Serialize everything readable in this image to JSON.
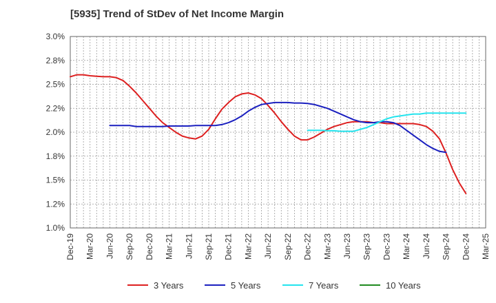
{
  "chart_data": {
    "type": "line",
    "title": "[5935]  Trend of StDev of Net Income Margin",
    "xlabel": "",
    "ylabel": "",
    "x_ticks": [
      "Dec-19",
      "Mar-20",
      "Jun-20",
      "Sep-20",
      "Dec-20",
      "Mar-21",
      "Jun-21",
      "Sep-21",
      "Dec-21",
      "Mar-22",
      "Jun-22",
      "Sep-22",
      "Dec-22",
      "Mar-23",
      "Jun-23",
      "Sep-23",
      "Dec-23",
      "Mar-24",
      "Jun-24",
      "Sep-24",
      "Dec-24",
      "Mar-25"
    ],
    "y_ticks": [
      "1.0%",
      "1.2%",
      "1.5%",
      "1.8%",
      "2.0%",
      "2.2%",
      "2.5%",
      "2.8%",
      "3.0%"
    ],
    "ylim": [
      1.0,
      3.0
    ],
    "grid": true,
    "legend_position": "bottom",
    "series": [
      {
        "name": "3 Years",
        "color": "#dd1f1f",
        "x": [
          "Dec-19",
          "Jan-20",
          "Feb-20",
          "Mar-20",
          "Apr-20",
          "May-20",
          "Jun-20",
          "Jul-20",
          "Aug-20",
          "Sep-20",
          "Oct-20",
          "Nov-20",
          "Dec-20",
          "Jan-21",
          "Feb-21",
          "Mar-21",
          "Apr-21",
          "May-21",
          "Jun-21",
          "Jul-21",
          "Aug-21",
          "Sep-21",
          "Oct-21",
          "Nov-21",
          "Dec-21",
          "Jan-22",
          "Feb-22",
          "Mar-22",
          "Apr-22",
          "May-22",
          "Jun-22",
          "Jul-22",
          "Aug-22",
          "Sep-22",
          "Oct-22",
          "Nov-22",
          "Dec-22",
          "Jan-23",
          "Feb-23",
          "Mar-23",
          "Apr-23",
          "May-23",
          "Jun-23",
          "Jul-23",
          "Aug-23",
          "Sep-23",
          "Oct-23",
          "Nov-23",
          "Dec-23",
          "Jan-24",
          "Feb-24",
          "Mar-24",
          "Apr-24",
          "May-24",
          "Jun-24",
          "Jul-24",
          "Aug-24",
          "Sep-24",
          "Oct-24",
          "Nov-24",
          "Dec-24"
        ],
        "values": [
          2.58,
          2.6,
          2.6,
          2.59,
          2.585,
          2.58,
          2.58,
          2.57,
          2.54,
          2.48,
          2.41,
          2.33,
          2.25,
          2.17,
          2.1,
          2.05,
          2.0,
          1.96,
          1.94,
          1.93,
          1.96,
          2.03,
          2.14,
          2.24,
          2.31,
          2.37,
          2.4,
          2.41,
          2.39,
          2.35,
          2.28,
          2.2,
          2.11,
          2.03,
          1.96,
          1.92,
          1.92,
          1.95,
          1.99,
          2.03,
          2.06,
          2.08,
          2.1,
          2.11,
          2.11,
          2.11,
          2.1,
          2.1,
          2.09,
          2.09,
          2.09,
          2.09,
          2.09,
          2.08,
          2.06,
          2.01,
          1.93,
          1.78,
          1.61,
          1.47,
          1.36
        ]
      },
      {
        "name": "5 Years",
        "color": "#1a1fbf",
        "x": [
          "Dec-19",
          "Jan-20",
          "Feb-20",
          "Mar-20",
          "Apr-20",
          "May-20",
          "Jun-20",
          "Jul-20",
          "Aug-20",
          "Sep-20",
          "Oct-20",
          "Nov-20",
          "Dec-20",
          "Jan-21",
          "Feb-21",
          "Mar-21",
          "Apr-21",
          "May-21",
          "Jun-21",
          "Jul-21",
          "Aug-21",
          "Sep-21",
          "Oct-21",
          "Nov-21",
          "Dec-21",
          "Jan-22",
          "Feb-22",
          "Mar-22",
          "Apr-22",
          "May-22",
          "Jun-22",
          "Jul-22",
          "Aug-22",
          "Sep-22",
          "Oct-22",
          "Nov-22",
          "Dec-22",
          "Jan-23",
          "Feb-23",
          "Mar-23",
          "Apr-23",
          "May-23",
          "Jun-23",
          "Jul-23",
          "Aug-23",
          "Sep-23",
          "Oct-23",
          "Nov-23",
          "Dec-23",
          "Jan-24",
          "Feb-24",
          "Mar-24",
          "Apr-24",
          "May-24",
          "Jun-24",
          "Jul-24",
          "Aug-24",
          "Sep-24",
          "Oct-24",
          "Nov-24",
          "Dec-24"
        ],
        "values": [
          null,
          null,
          null,
          null,
          null,
          null,
          2.07,
          2.07,
          2.07,
          2.07,
          2.06,
          2.06,
          2.06,
          2.06,
          2.06,
          2.065,
          2.065,
          2.065,
          2.065,
          2.07,
          2.07,
          2.07,
          2.07,
          2.08,
          2.1,
          2.13,
          2.17,
          2.22,
          2.26,
          2.29,
          2.3,
          2.31,
          2.31,
          2.31,
          2.305,
          2.305,
          2.3,
          2.29,
          2.27,
          2.25,
          2.22,
          2.19,
          2.16,
          2.13,
          2.11,
          2.1,
          2.1,
          2.11,
          2.11,
          2.1,
          2.07,
          2.02,
          1.97,
          1.92,
          1.87,
          1.83,
          1.8,
          1.79,
          null,
          null,
          null
        ]
      },
      {
        "name": "7 Years",
        "color": "#22e4ee",
        "x": [
          "Dec-19",
          "Jan-20",
          "Feb-20",
          "Mar-20",
          "Apr-20",
          "May-20",
          "Jun-20",
          "Jul-20",
          "Aug-20",
          "Sep-20",
          "Oct-20",
          "Nov-20",
          "Dec-20",
          "Jan-21",
          "Feb-21",
          "Mar-21",
          "Apr-21",
          "May-21",
          "Jun-21",
          "Jul-21",
          "Aug-21",
          "Sep-21",
          "Oct-21",
          "Nov-21",
          "Dec-21",
          "Jan-22",
          "Feb-22",
          "Mar-22",
          "Apr-22",
          "May-22",
          "Jun-22",
          "Jul-22",
          "Aug-22",
          "Sep-22",
          "Oct-22",
          "Nov-22",
          "Dec-22",
          "Jan-23",
          "Feb-23",
          "Mar-23",
          "Apr-23",
          "May-23",
          "Jun-23",
          "Jul-23",
          "Aug-23",
          "Sep-23",
          "Oct-23",
          "Nov-23",
          "Dec-23",
          "Jan-24",
          "Feb-24",
          "Mar-24",
          "Apr-24",
          "May-24",
          "Jun-24",
          "Jul-24",
          "Aug-24",
          "Sep-24",
          "Oct-24",
          "Nov-24",
          "Dec-24"
        ],
        "values": [
          null,
          null,
          null,
          null,
          null,
          null,
          null,
          null,
          null,
          null,
          null,
          null,
          null,
          null,
          null,
          null,
          null,
          null,
          null,
          null,
          null,
          null,
          null,
          null,
          null,
          null,
          null,
          null,
          null,
          null,
          null,
          null,
          null,
          null,
          null,
          null,
          2.02,
          2.02,
          2.02,
          2.015,
          2.015,
          2.01,
          2.01,
          2.01,
          2.03,
          2.05,
          2.08,
          2.11,
          2.14,
          2.16,
          2.17,
          2.18,
          2.19,
          2.19,
          2.2,
          2.2,
          2.2,
          2.2,
          2.2,
          2.2,
          2.2
        ]
      },
      {
        "name": "10 Years",
        "color": "#1f8a1f",
        "x": [],
        "values": []
      }
    ]
  }
}
